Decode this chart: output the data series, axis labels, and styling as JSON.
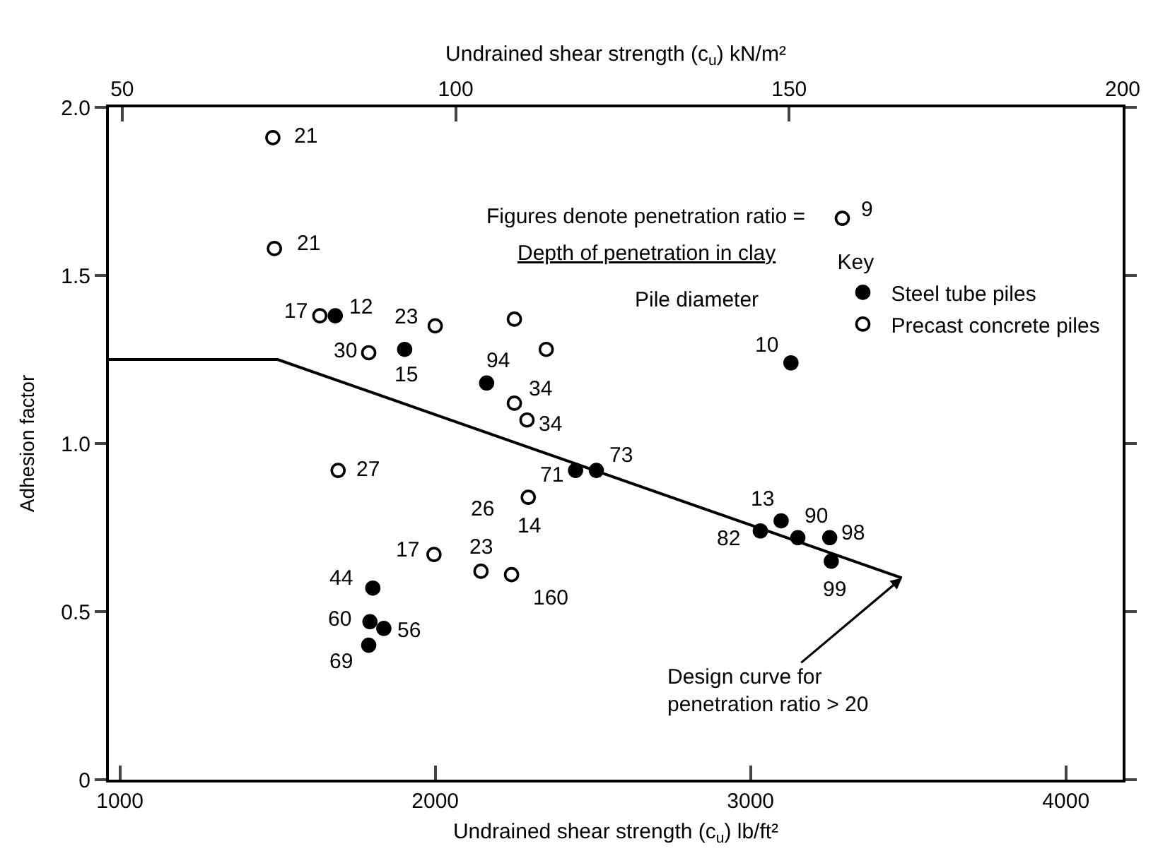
{
  "chart_data": {
    "type": "scatter",
    "xlabel": "Undrained shear strength (c$_{u}$) lb/ft²",
    "x2label": "Undrained shear strength (c$_{u}$) kN/m²",
    "ylabel": "Adhesion factor",
    "legend_title": "Key",
    "xlim": [
      965,
      4180
    ],
    "xticks": [
      1000,
      2000,
      3000,
      4000
    ],
    "x2lim": [
      48,
      200
    ],
    "x2ticks": [
      50,
      100,
      150,
      200
    ],
    "ylim": [
      0,
      2
    ],
    "yticks": [
      0,
      0.5,
      {
        "value": 1,
        "label": "1.0"
      },
      1.5,
      {
        "value": 2,
        "label": "2.0"
      }
    ],
    "legend": "top right",
    "series": [
      {
        "name": "Steel tube piles",
        "color": "#000000",
        "marker": "circle",
        "x": [
          1683,
          1903,
          2163,
          3128,
          2445,
          2511,
          1802,
          1793,
          1837,
          1789,
          3031,
          3097,
          3150,
          3251,
          3256
        ],
        "values": [
          1.38,
          1.28,
          1.18,
          1.24,
          0.92,
          0.92,
          0.57,
          0.47,
          0.45,
          0.4,
          0.74,
          0.77,
          0.72,
          0.72,
          0.65
        ]
      },
      {
        "name": "Precast concrete piles",
        "color": "#000000",
        "marker": "circle-open",
        "x": [
          1485,
          1490,
          1634,
          2000,
          1789,
          2251,
          2352,
          2251,
          2291,
          3291,
          1692,
          2295,
          1996,
          2145,
          2242
        ],
        "values": [
          1.91,
          1.58,
          1.38,
          1.35,
          1.27,
          1.37,
          1.28,
          1.12,
          1.07,
          1.67,
          0.92,
          0.84,
          0.67,
          0.62,
          0.61
        ]
      },
      {
        "type": "line",
        "color": "#000000",
        "marker": "none",
        "x": [
          965,
          1500,
          3480
        ],
        "values": [
          1.25,
          1.25,
          0.6
        ]
      }
    ],
    "annotations": [
      "Figures denote penetration ratio =",
      "Depth of penetration in clay",
      "Pile diameter",
      {
        "text": "Design curve for\npenetration ratio > 20",
        "x": 3480,
        "y": 0.6
      },
      {
        "text": "21",
        "x": 1485,
        "y": 1.91
      },
      {
        "text": "21",
        "x": 1490,
        "y": 1.58
      },
      {
        "text": "17",
        "x": 1634,
        "y": 1.38
      },
      {
        "text": "12",
        "x": 1683,
        "y": 1.38
      },
      {
        "text": "23",
        "x": 2000,
        "y": 1.35
      },
      {
        "text": "30",
        "x": 1789,
        "y": 1.27
      },
      {
        "text": "15",
        "x": 1903,
        "y": 1.28
      },
      {
        "text": "94",
        "x": 2163,
        "y": 1.18
      },
      {
        "text": "34",
        "x": 2251,
        "y": 1.12
      },
      {
        "text": "34",
        "x": 2291,
        "y": 1.07
      },
      {
        "text": "9",
        "x": 3291,
        "y": 1.67
      },
      {
        "text": "10",
        "x": 3128,
        "y": 1.24
      },
      {
        "text": "27",
        "x": 1692,
        "y": 0.92
      },
      {
        "text": "71",
        "x": 2445,
        "y": 0.92
      },
      {
        "text": "73",
        "x": 2511,
        "y": 0.92
      },
      {
        "text": "26",
        "x": 2295,
        "y": 0.84
      },
      {
        "text": "14",
        "x": 2295,
        "y": 0.84
      },
      {
        "text": "17",
        "x": 1996,
        "y": 0.67
      },
      {
        "text": "23",
        "x": 2145,
        "y": 0.62
      },
      {
        "text": "160",
        "x": 2242,
        "y": 0.61
      },
      {
        "text": "44",
        "x": 1802,
        "y": 0.57
      },
      {
        "text": "60",
        "x": 1793,
        "y": 0.47
      },
      {
        "text": "56",
        "x": 1837,
        "y": 0.45
      },
      {
        "text": "69",
        "x": 1789,
        "y": 0.4
      },
      {
        "text": "82",
        "x": 3031,
        "y": 0.74
      },
      {
        "text": "13",
        "x": 3097,
        "y": 0.77
      },
      {
        "text": "90",
        "x": 3150,
        "y": 0.72
      },
      {
        "text": "98",
        "x": 3251,
        "y": 0.72
      },
      {
        "text": "99",
        "x": 3256,
        "y": 0.65
      }
    ]
  }
}
